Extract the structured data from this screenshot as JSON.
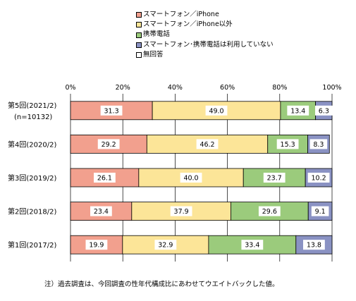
{
  "chart_data": {
    "type": "bar",
    "orientation": "horizontal",
    "stacked": true,
    "normalized": true,
    "categories": [
      [
        "第5回(2021/2)",
        "(n=10132)"
      ],
      [
        "第4回(2020/2)"
      ],
      [
        "第3回(2019/2)"
      ],
      [
        "第2回(2018/2)"
      ],
      [
        "第1回(2017/2)"
      ]
    ],
    "series": [
      {
        "name": "スマートフォン／iPhone",
        "color": "#f2a08e",
        "values": [
          31.3,
          29.2,
          26.1,
          23.4,
          19.9
        ]
      },
      {
        "name": "スマートフォン／iPhone以外",
        "color": "#fce598",
        "values": [
          49.0,
          46.2,
          40.0,
          37.9,
          32.9
        ]
      },
      {
        "name": "携帯電話",
        "color": "#9bcb7c",
        "values": [
          13.4,
          15.3,
          23.7,
          29.6,
          33.4
        ]
      },
      {
        "name": "スマートフォン･携帯電話は利用していない",
        "color": "#8a92c3",
        "values": [
          6.3,
          8.3,
          10.2,
          9.1,
          13.8
        ]
      },
      {
        "name": "無回答",
        "color": "#ffffff",
        "values": [
          0,
          0,
          0,
          0,
          0
        ]
      }
    ],
    "value_labels": [
      [
        "31.3",
        "49.0",
        "13.4",
        "6.3"
      ],
      [
        "29.2",
        "46.2",
        "15.3",
        "8.3"
      ],
      [
        "26.1",
        "40.0",
        "23.7",
        "10.2"
      ],
      [
        "23.4",
        "37.9",
        "29.6",
        "9.1"
      ],
      [
        "19.9",
        "32.9",
        "33.4",
        "13.8"
      ]
    ],
    "xticks": [
      "0%",
      "20%",
      "40%",
      "60%",
      "80%",
      "100%"
    ],
    "xlim": [
      0,
      100
    ],
    "grid": true,
    "legend_position": "top"
  },
  "note": "注）過去調査は、今回調査の性年代構成比にあわせてウエイトバックした値。"
}
